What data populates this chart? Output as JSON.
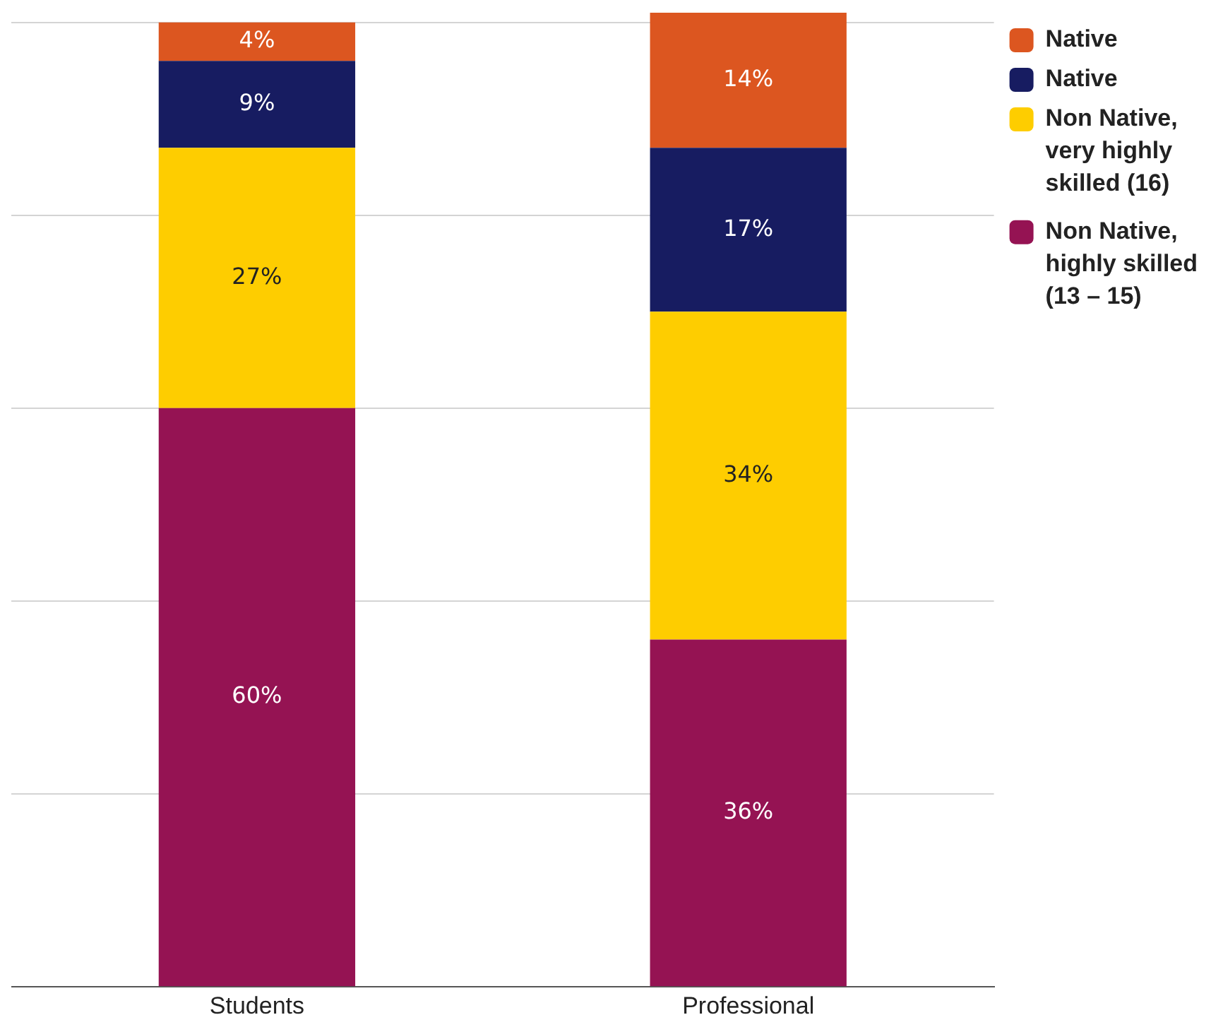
{
  "chart_data": {
    "type": "bar",
    "stacked": true,
    "categories": [
      "Students",
      "Professional"
    ],
    "series": [
      {
        "name": "Non Native, highly skilled (13 – 15)",
        "color": "#951353",
        "values": [
          60,
          36
        ],
        "value_labels": [
          "60%",
          "36%"
        ]
      },
      {
        "name": "Non Native, very highly skilled (16)",
        "color": "#fecd00",
        "values": [
          27,
          34
        ],
        "value_labels": [
          "27%",
          "34%"
        ]
      },
      {
        "name": "Native",
        "color": "#171c61",
        "values": [
          9,
          17
        ],
        "value_labels": [
          "9%",
          "17%"
        ]
      },
      {
        "name": "Native",
        "color": "#dc5620",
        "values": [
          4,
          14
        ],
        "value_labels": [
          "4%",
          "14%"
        ]
      }
    ],
    "ylim": [
      0,
      101
    ],
    "yticks": [
      {
        "value": 0,
        "label": null
      },
      {
        "value": 20,
        "label": null
      },
      {
        "value": 40,
        "label": null
      },
      {
        "value": 60,
        "label": null
      },
      {
        "value": 80,
        "label": null
      },
      {
        "value": 100,
        "label": null
      }
    ],
    "grid": "y",
    "legend": "top right"
  }
}
